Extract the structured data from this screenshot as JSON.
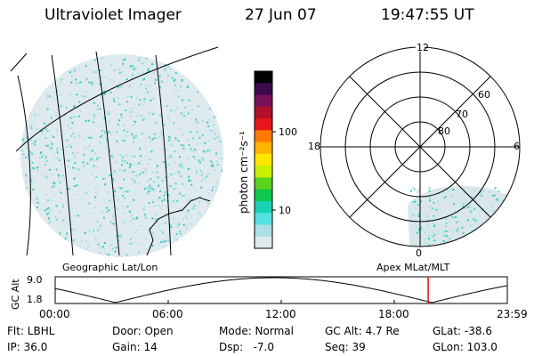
{
  "header": {
    "instrument": "Ultraviolet Imager",
    "date": "27 Jun 07",
    "time": "19:47:55 UT"
  },
  "colorbar": {
    "label": "photon cm⁻²s⁻¹",
    "ticks": [
      "100",
      "10"
    ],
    "colors": [
      "#000000",
      "#3c0a4a",
      "#7a0f5a",
      "#b0102a",
      "#e8161a",
      "#ff7a00",
      "#ffb400",
      "#ffe600",
      "#c8f000",
      "#5ad21e",
      "#0fc84b",
      "#19d2b4",
      "#55e1e1",
      "#aadfe6",
      "#dfe9ee"
    ]
  },
  "panels": {
    "left_label": "Geographic Lat/Lon",
    "right_label": "Apex MLat/MLT",
    "polar": {
      "mlt_labels": [
        "12",
        "18",
        "6",
        "0"
      ],
      "lat_labels": [
        "60",
        "70",
        "80"
      ]
    }
  },
  "altitude_plot": {
    "ylabel": "GC Alt",
    "yticks": [
      "9.0",
      "1.8"
    ],
    "xticks": [
      "00:00",
      "06:00",
      "12:00",
      "18:00",
      "23:59"
    ],
    "marker_time_hours": 19.8,
    "marker_color": "#e01010"
  },
  "info": {
    "flt": "Flt: LBHL",
    "ip": "IP: 36.0",
    "door": "Door: Open",
    "gain": "Gain: 14",
    "mode": "Mode: Normal",
    "dsp": "Dsp:   -7.0",
    "gc_alt": "GC Alt: 4.7 Re",
    "seq": "Seq: 39",
    "glat": "GLat: -38.6",
    "glon": "GLon: 103.0"
  }
}
